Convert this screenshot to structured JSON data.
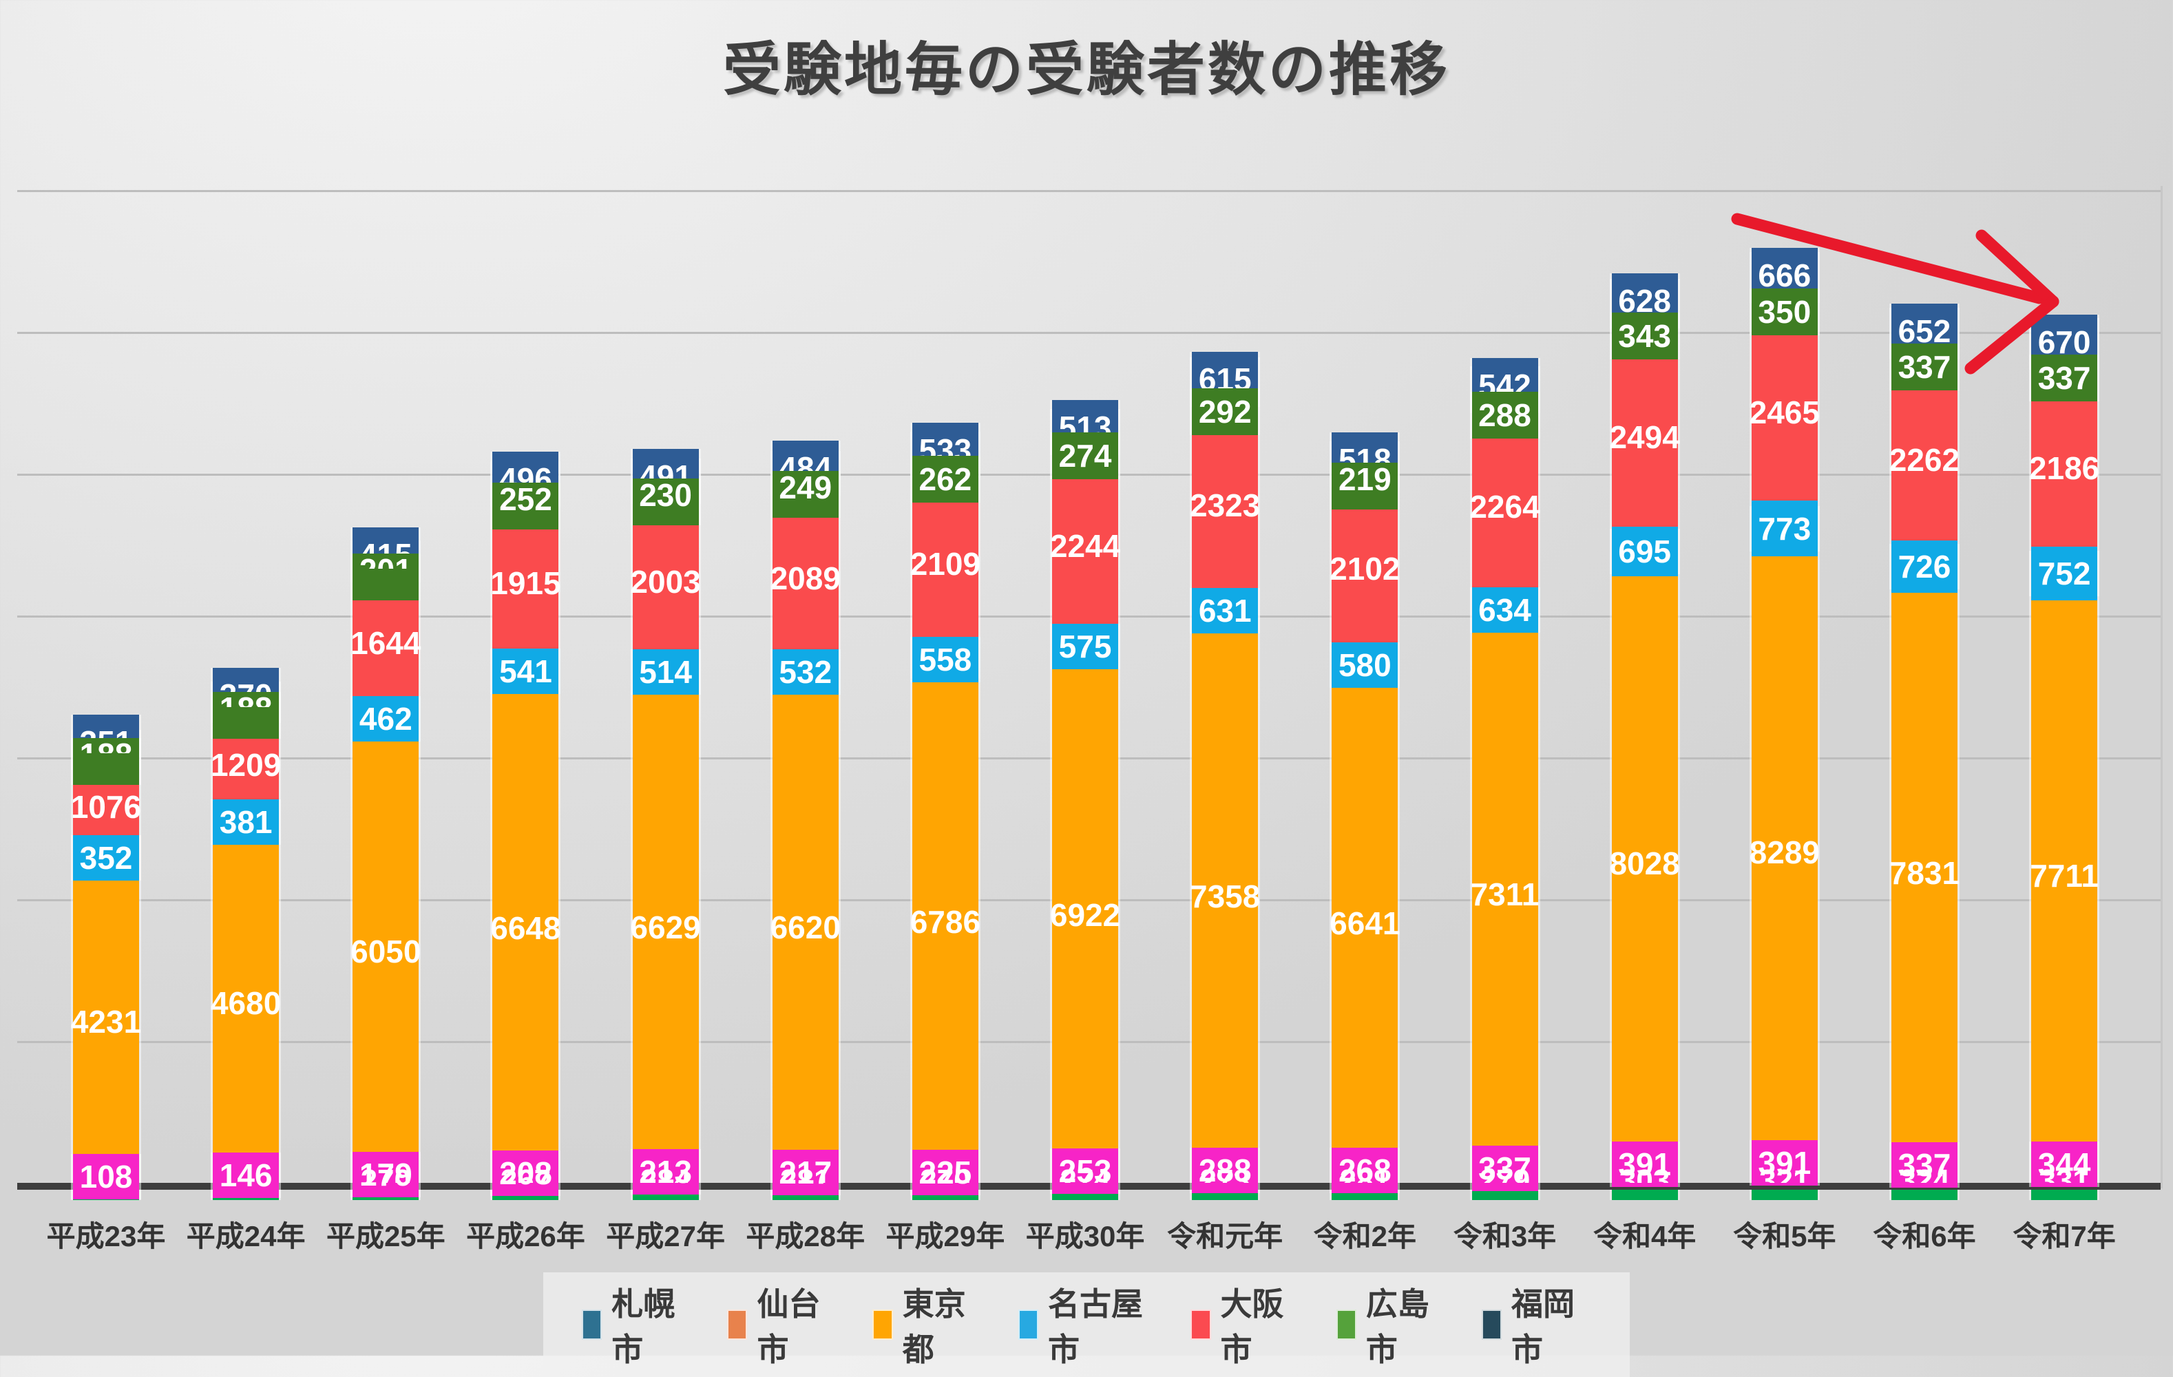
{
  "title": "受験地毎の受験者数の推移",
  "chart_data": {
    "type": "bar",
    "stacked": true,
    "title": "受験地毎の受験者数の推移",
    "categories": [
      "平成23年",
      "平成24年",
      "平成25年",
      "平成26年",
      "平成27年",
      "平成28年",
      "平成29年",
      "平成30年",
      "令和元年",
      "令和2年",
      "令和3年",
      "令和4年",
      "令和5年",
      "令和6年",
      "令和7年"
    ],
    "series": [
      {
        "name": "札幌市",
        "segment_color": "#00AB50",
        "values": [
          null,
          null,
          270,
          267,
          284,
          281,
          270,
          274,
          273,
          281,
          279,
          303,
          321,
          324,
          331
        ]
      },
      {
        "name": "仙台市",
        "segment_color": "#F724C7",
        "values": [
          108,
          146,
          179,
          208,
          213,
          217,
          225,
          253,
          288,
          268,
          337,
          391,
          391,
          337,
          344
        ]
      },
      {
        "name": "東京都",
        "segment_color": "#FFA502",
        "values": [
          4231,
          4680,
          6050,
          6648,
          6629,
          6620,
          6786,
          6922,
          7358,
          6641,
          7311,
          8028,
          8289,
          7831,
          7711
        ]
      },
      {
        "name": "名古屋市",
        "segment_color": "#10AAE6",
        "values": [
          352,
          381,
          462,
          541,
          514,
          532,
          558,
          575,
          631,
          580,
          634,
          695,
          773,
          726,
          752
        ]
      },
      {
        "name": "大阪市",
        "segment_color": "#FA4B4D",
        "values": [
          1076,
          1209,
          1644,
          1915,
          2003,
          2089,
          2109,
          2244,
          2323,
          2102,
          2264,
          2494,
          2465,
          2262,
          2186
        ]
      },
      {
        "name": "広島市",
        "segment_color": "#3E7D23",
        "values": [
          188,
          188,
          201,
          252,
          230,
          249,
          262,
          274,
          292,
          219,
          288,
          343,
          350,
          337,
          337
        ]
      },
      {
        "name": "福岡市",
        "segment_color": "#2E5C95",
        "values": [
          351,
          370,
          415,
          496,
          491,
          484,
          533,
          513,
          615,
          518,
          542,
          628,
          666,
          652,
          670
        ]
      }
    ],
    "ylim": [
      0,
      14000
    ],
    "gridline_interval": 2000,
    "grid": true,
    "y_axis_labels_visible": false,
    "legend_position": "bottom"
  },
  "legend": {
    "items": [
      {
        "label": "札幌市",
        "swatch": "#2E7191"
      },
      {
        "label": "仙台市",
        "swatch": "#E8824C"
      },
      {
        "label": "東京都",
        "swatch": "#FFA502"
      },
      {
        "label": "名古屋市",
        "swatch": "#27A9E1"
      },
      {
        "label": "大阪市",
        "swatch": "#FB4A50"
      },
      {
        "label": "広島市",
        "swatch": "#55A23B"
      },
      {
        "label": "福岡市",
        "swatch": "#264A5C"
      }
    ]
  },
  "annotations": {
    "trend_arrow_color": "#E8192B"
  }
}
